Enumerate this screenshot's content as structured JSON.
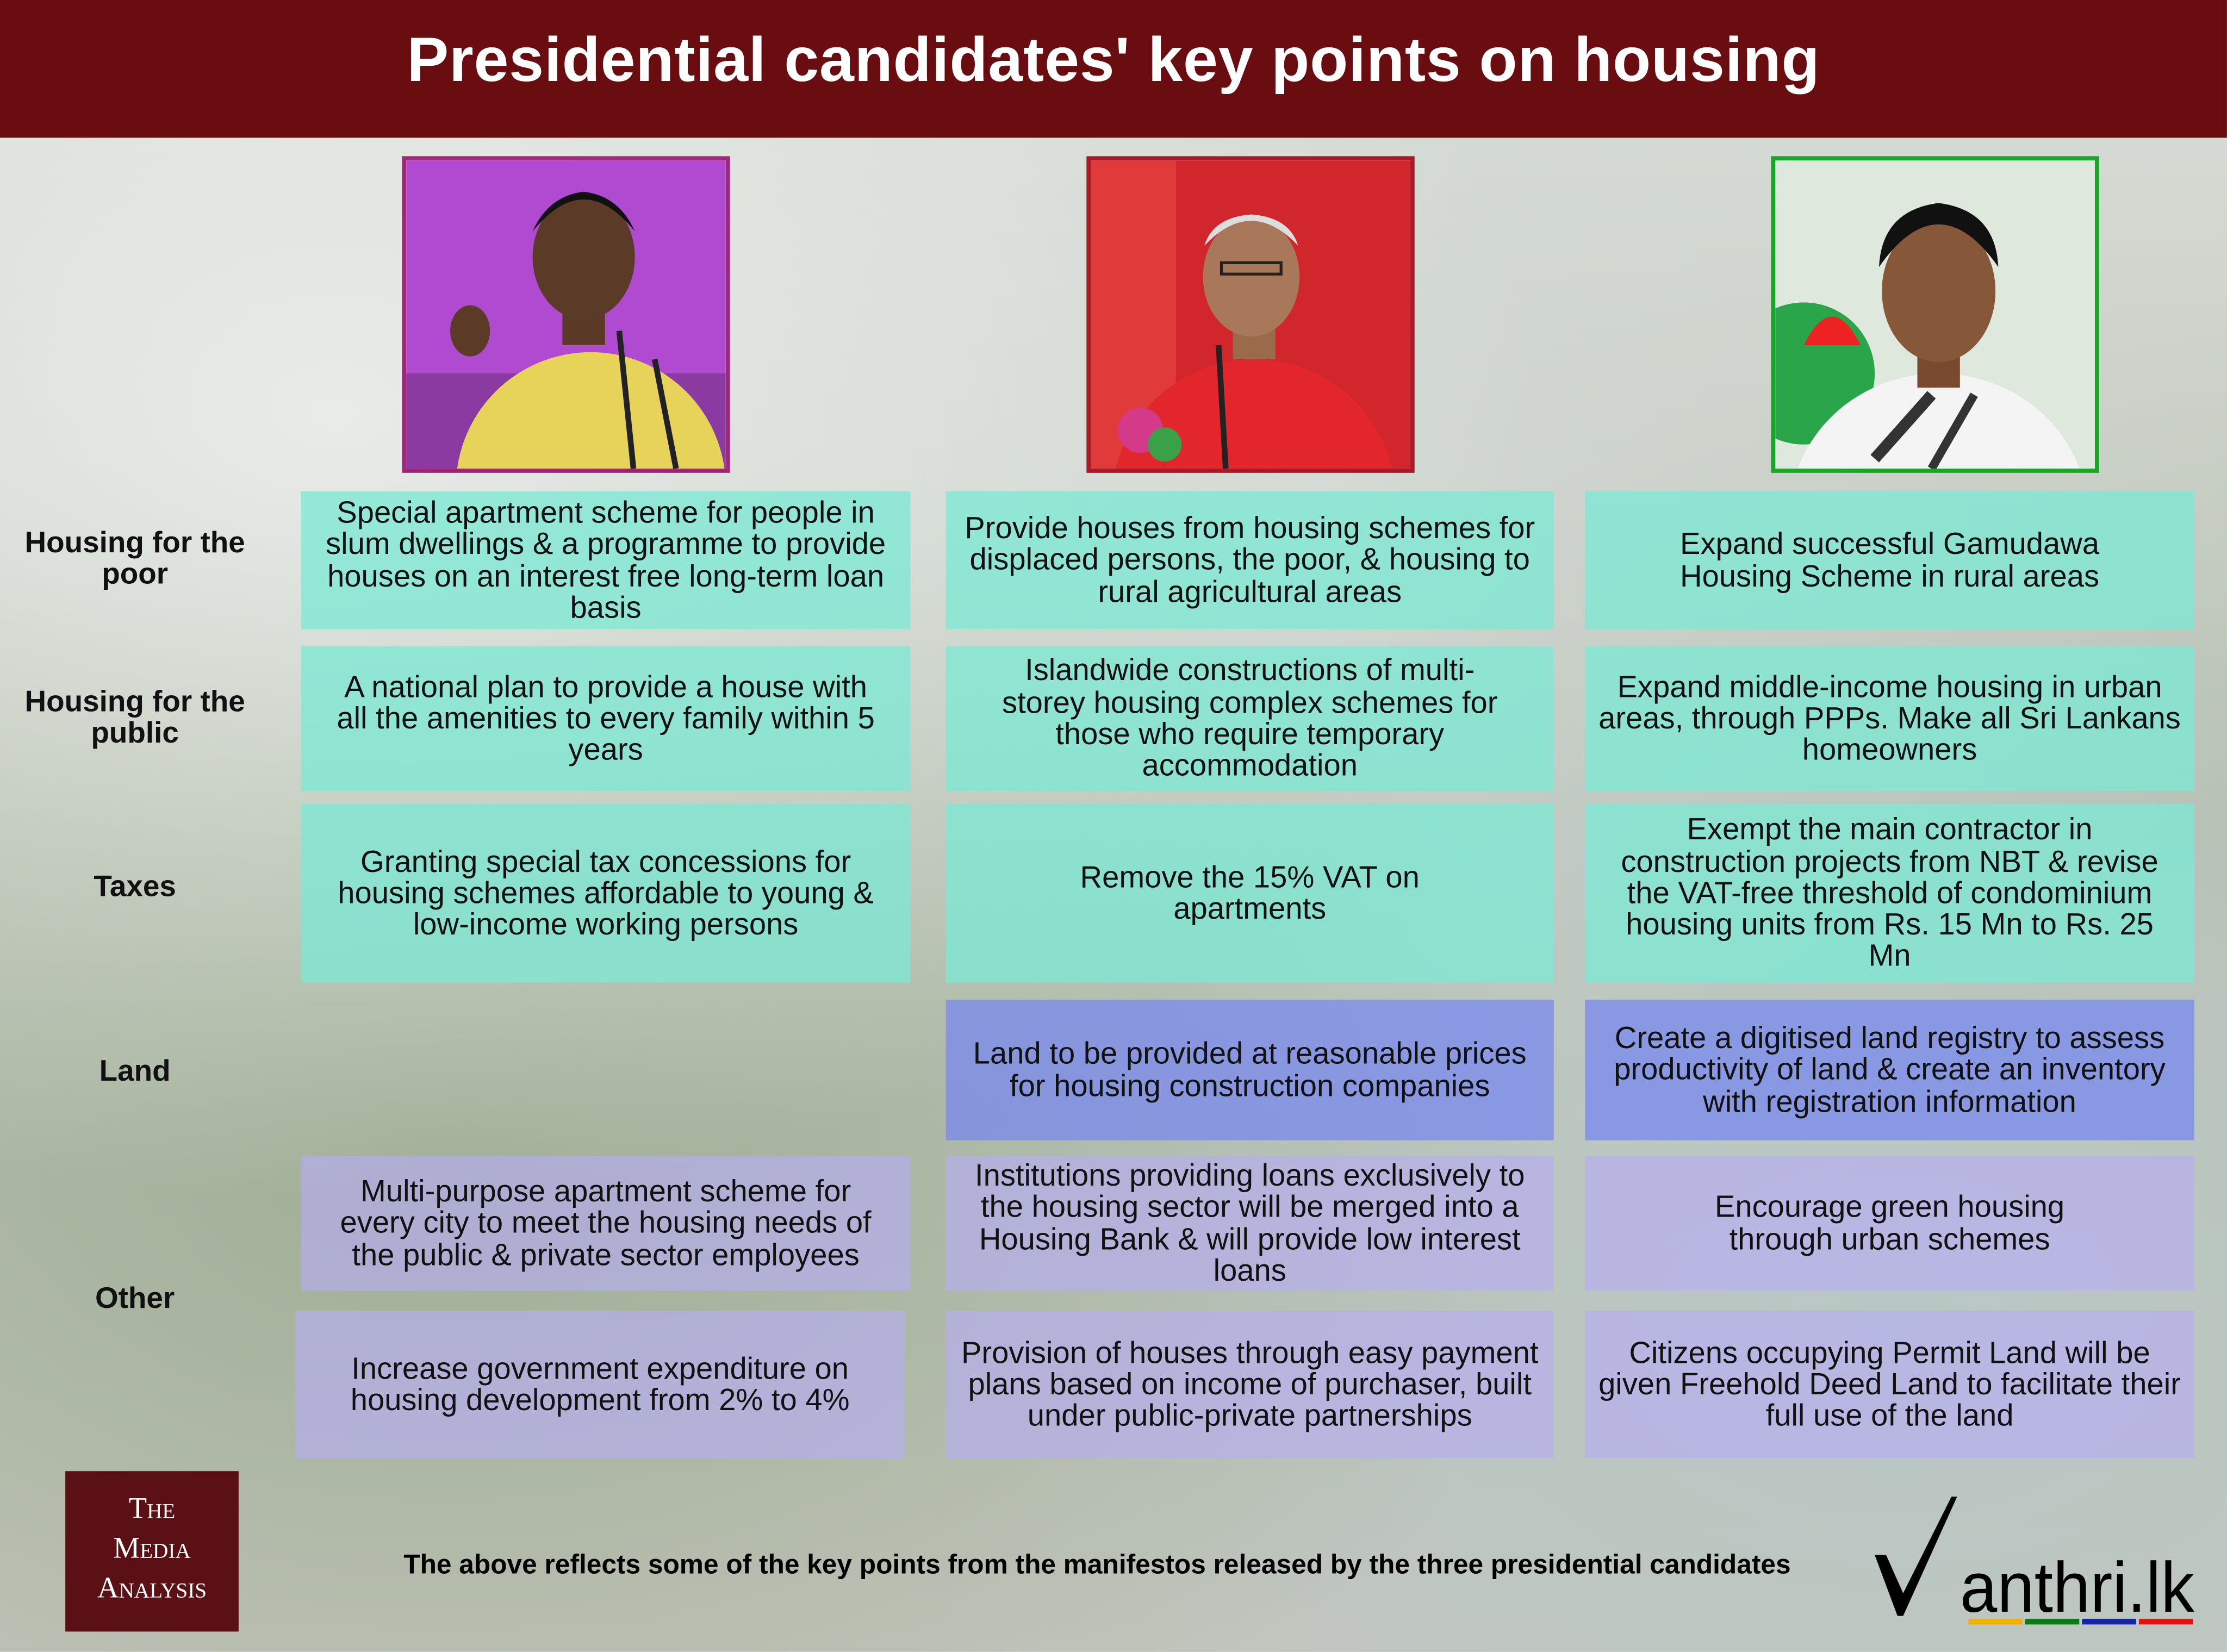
{
  "title": "Presidential candidates' key points on housing",
  "candidates": [
    {
      "photo": "candidate-1-photo",
      "border_color": "#a0287a"
    },
    {
      "photo": "candidate-2-photo",
      "border_color": "#a81c2a"
    },
    {
      "photo": "candidate-3-photo",
      "border_color": "#1aa52a"
    }
  ],
  "rows": [
    {
      "label": "Housing for the poor",
      "cells": [
        "Special apartment scheme for people in slum dwellings & a programme to provide houses on an interest free long-term loan basis",
        "Provide houses from housing schemes for displaced persons, the poor, & housing to rural agricultural areas",
        "Expand successful Gamudawa Housing Scheme in rural areas"
      ]
    },
    {
      "label": "Housing for the public",
      "cells": [
        "A national plan to provide a house with all the amenities to every family within 5 years",
        "Islandwide constructions of multi-storey housing complex schemes for those who require temporary accommodation",
        "Expand middle-income housing in urban areas, through PPPs. Make all Sri Lankans homeowners"
      ]
    },
    {
      "label": "Taxes",
      "cells": [
        "Granting special tax concessions for housing schemes affordable to young & low-income working persons",
        "Remove the 15% VAT on apartments",
        "Exempt the main contractor in construction projects from NBT & revise the VAT-free threshold of condominium housing units from Rs. 15 Mn to Rs. 25 Mn"
      ]
    },
    {
      "label": "Land",
      "cells": [
        "",
        "Land to be provided at reasonable prices for housing construction companies",
        "Create a digitised land registry to assess productivity of land & create an inventory with registration information"
      ]
    },
    {
      "label": "Other",
      "cells": [
        "Multi-purpose apartment scheme for every city to meet the housing needs of the public & private sector employees",
        "Institutions providing loans exclusively to the housing sector will be merged into a Housing Bank & will provide low interest loans",
        "Encourage green housing through urban schemes"
      ],
      "cells_2": [
        "Increase government expenditure on housing development from 2% to 4%",
        "Provision of houses through easy payment plans based on income of purchaser, built under public-private partnerships",
        "Citizens occupying Permit Land will be given Freehold Deed Land to facilitate their full use of the land"
      ]
    }
  ],
  "footer": {
    "logo_left": [
      "The",
      "Media",
      "Analysis"
    ],
    "note": "The above reflects some of the key points from the manifestos released by the three presidential candidates",
    "logo_right": "Manthri.lk",
    "logo_right_text": "anthri.lk",
    "logo_right_colors": [
      "#f2b100",
      "#0a7a14",
      "#1421a8",
      "#e11414"
    ]
  }
}
